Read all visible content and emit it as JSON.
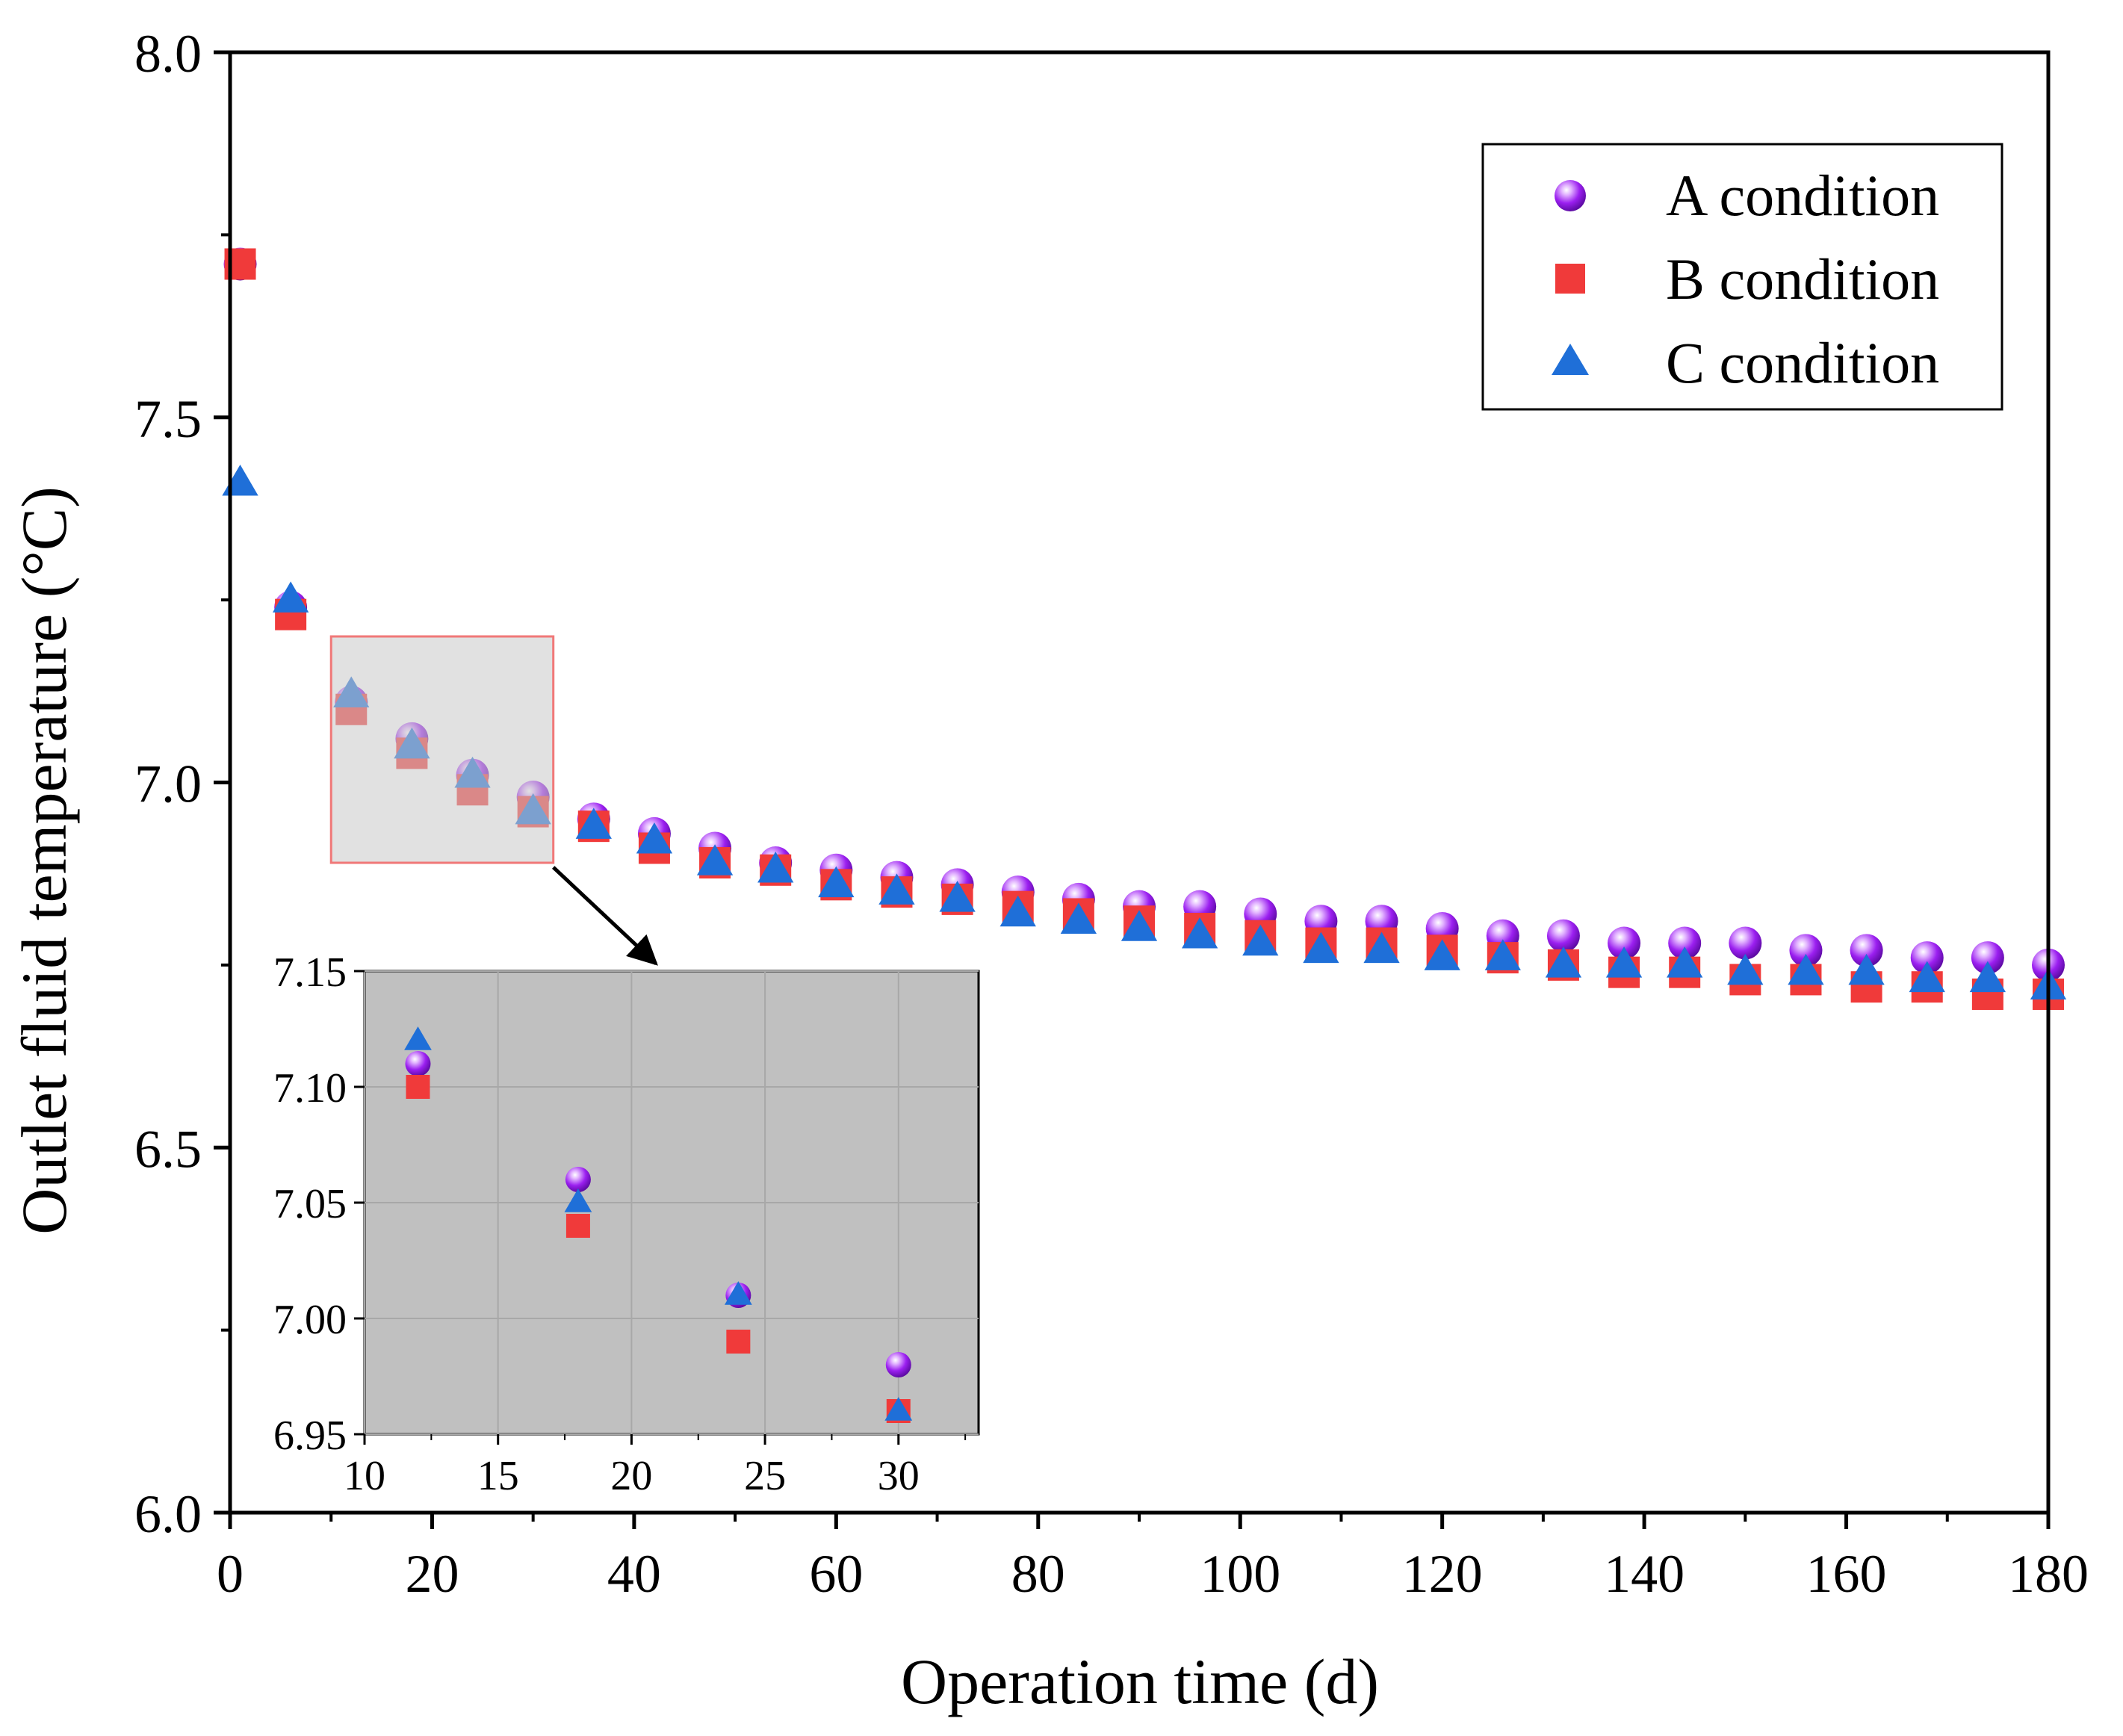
{
  "chart_data": {
    "type": "scatter",
    "xlabel": "Operation time (d)",
    "ylabel": "Outlet fluid temperature (°C)",
    "xlim": [
      0,
      180
    ],
    "ylim": [
      6.0,
      8.0
    ],
    "xticks": [
      0,
      20,
      40,
      60,
      80,
      100,
      120,
      140,
      160,
      180
    ],
    "yticks": [
      6.0,
      6.5,
      7.0,
      7.5,
      8.0
    ],
    "grid": false,
    "legend_position": "top-right",
    "colors": {
      "A": "#9b1ff0",
      "B": "#f03a3a",
      "C": "#1f6fd8"
    },
    "series": [
      {
        "name": "A condition",
        "marker": "sphere",
        "x": [
          1,
          6,
          12,
          18,
          24,
          30,
          36,
          42,
          48,
          54,
          60,
          66,
          72,
          78,
          84,
          90,
          96,
          102,
          108,
          114,
          120,
          126,
          132,
          138,
          144,
          150,
          156,
          162,
          168,
          174,
          180
        ],
        "y": [
          7.71,
          7.24,
          7.11,
          7.06,
          7.01,
          6.98,
          6.95,
          6.93,
          6.91,
          6.89,
          6.88,
          6.87,
          6.86,
          6.85,
          6.84,
          6.83,
          6.83,
          6.82,
          6.81,
          6.81,
          6.8,
          6.79,
          6.79,
          6.78,
          6.78,
          6.78,
          6.77,
          6.77,
          6.76,
          6.76,
          6.75
        ]
      },
      {
        "name": "B condition",
        "marker": "square",
        "x": [
          1,
          6,
          12,
          18,
          24,
          30,
          36,
          42,
          48,
          54,
          60,
          66,
          72,
          78,
          84,
          90,
          96,
          102,
          108,
          114,
          120,
          126,
          132,
          138,
          144,
          150,
          156,
          162,
          168,
          174,
          180
        ],
        "y": [
          7.71,
          7.23,
          7.1,
          7.04,
          6.99,
          6.96,
          6.94,
          6.91,
          6.89,
          6.88,
          6.86,
          6.85,
          6.84,
          6.83,
          6.82,
          6.81,
          6.8,
          6.79,
          6.78,
          6.78,
          6.77,
          6.76,
          6.75,
          6.74,
          6.74,
          6.73,
          6.73,
          6.72,
          6.72,
          6.71,
          6.71
        ]
      },
      {
        "name": "C condition",
        "marker": "triangle",
        "x": [
          1,
          6,
          12,
          18,
          24,
          30,
          36,
          42,
          48,
          54,
          60,
          66,
          72,
          78,
          84,
          90,
          96,
          102,
          108,
          114,
          120,
          126,
          132,
          138,
          144,
          150,
          156,
          162,
          168,
          174,
          180
        ],
        "y": [
          7.41,
          7.25,
          7.12,
          7.05,
          7.01,
          6.96,
          6.94,
          6.92,
          6.89,
          6.88,
          6.86,
          6.85,
          6.84,
          6.82,
          6.81,
          6.8,
          6.79,
          6.78,
          6.77,
          6.77,
          6.76,
          6.76,
          6.75,
          6.75,
          6.75,
          6.74,
          6.74,
          6.74,
          6.73,
          6.73,
          6.72
        ]
      }
    ],
    "inset": {
      "xlim": [
        10,
        33
      ],
      "ylim": [
        6.95,
        7.15
      ],
      "xticks": [
        10,
        15,
        20,
        25,
        30
      ],
      "yticks": [
        6.95,
        7.0,
        7.05,
        7.1,
        7.15
      ],
      "ytick_labels": [
        "6.95",
        "7.00",
        "7.05",
        "7.10",
        "7.15"
      ],
      "grid": true,
      "highlight_region": {
        "xlim": [
          10,
          32
        ],
        "ylim": [
          6.89,
          7.2
        ]
      },
      "series": [
        {
          "name": "A condition",
          "x": [
            12,
            18,
            24,
            30
          ],
          "y": [
            7.11,
            7.06,
            7.01,
            6.98
          ]
        },
        {
          "name": "B condition",
          "x": [
            12,
            18,
            24,
            30
          ],
          "y": [
            7.1,
            7.04,
            6.99,
            6.96
          ]
        },
        {
          "name": "C condition",
          "x": [
            12,
            18,
            24,
            30
          ],
          "y": [
            7.12,
            7.05,
            7.01,
            6.96
          ]
        }
      ]
    }
  }
}
